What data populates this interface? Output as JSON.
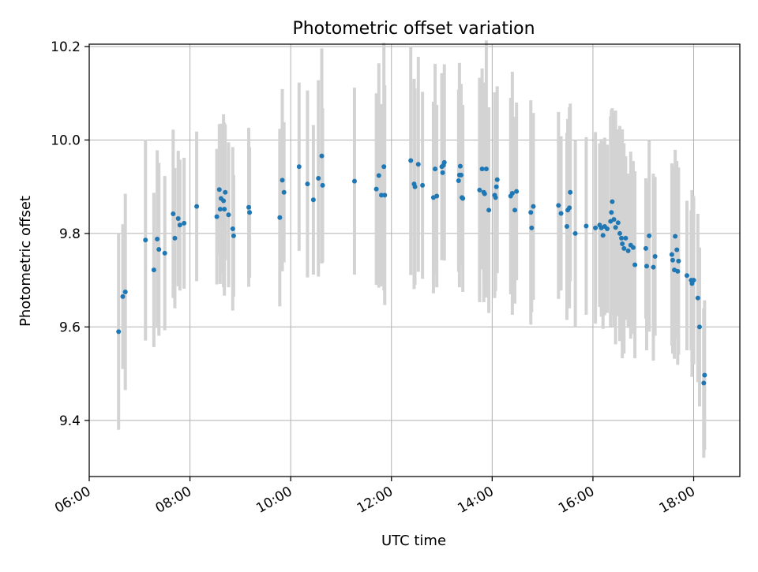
{
  "chart_data": {
    "type": "scatter",
    "title": "Photometric offset variation",
    "xlabel": "UTC time",
    "ylabel": "Photometric offset",
    "x_format": "HH:MM",
    "xlim": [
      "06:00",
      "18:55"
    ],
    "ylim": [
      9.28,
      10.205
    ],
    "x_ticks": [
      "06:00",
      "08:00",
      "10:00",
      "12:00",
      "14:00",
      "16:00",
      "18:00"
    ],
    "y_ticks": [
      9.4,
      9.6,
      9.8,
      10.0,
      10.2
    ],
    "y_tick_labels": [
      "9.4",
      "9.6",
      "9.8",
      "10.0",
      "10.2"
    ],
    "grid": true,
    "point_color": "#1f77b4",
    "errorbar_color": "#d3d3d3",
    "series": [
      {
        "x": [
          "06:35",
          "06:40",
          "06:43",
          "07:07",
          "07:17",
          "07:21",
          "07:23",
          "07:30",
          "07:40",
          "07:42",
          "07:46",
          "07:48",
          "07:53",
          "08:08",
          "08:32",
          "08:35",
          "08:36",
          "08:37",
          "08:40",
          "08:41",
          "08:42",
          "08:46",
          "08:51",
          "08:52",
          "09:10",
          "09:11",
          "09:47",
          "09:50",
          "09:52",
          "10:10",
          "10:20",
          "10:27",
          "10:33",
          "10:37",
          "10:38",
          "11:16",
          "11:42",
          "11:45",
          "11:48",
          "11:51",
          "11:52",
          "12:23",
          "12:27",
          "12:28",
          "12:32",
          "12:37",
          "12:50",
          "12:52",
          "12:54",
          "13:00",
          "13:01",
          "13:02",
          "13:03",
          "13:20",
          "13:21",
          "13:22",
          "13:23",
          "13:24",
          "13:25",
          "13:45",
          "13:48",
          "13:50",
          "13:51",
          "13:53",
          "13:56",
          "14:03",
          "14:04",
          "14:05",
          "14:06",
          "14:22",
          "14:24",
          "14:27",
          "14:29",
          "14:46",
          "14:47",
          "14:49",
          "15:19",
          "15:22",
          "15:29",
          "15:30",
          "15:32",
          "15:33",
          "15:39",
          "15:52",
          "16:03",
          "16:08",
          "16:10",
          "16:12",
          "16:14",
          "16:17",
          "16:21",
          "16:22",
          "16:23",
          "16:25",
          "16:27",
          "16:30",
          "16:32",
          "16:34",
          "16:35",
          "16:37",
          "16:39",
          "16:42",
          "16:45",
          "16:48",
          "16:50",
          "17:03",
          "17:04",
          "17:07",
          "17:12",
          "17:14",
          "17:34",
          "17:35",
          "17:37",
          "17:38",
          "17:40",
          "17:41",
          "17:42",
          "17:52",
          "17:57",
          "17:58",
          "18:00",
          "18:05",
          "18:07",
          "18:12",
          "18:13"
        ],
        "y": [
          9.59,
          9.665,
          9.675,
          9.786,
          9.722,
          9.788,
          9.766,
          9.758,
          9.842,
          9.79,
          9.832,
          9.818,
          9.822,
          9.858,
          9.836,
          9.894,
          9.852,
          9.875,
          9.87,
          9.852,
          9.888,
          9.84,
          9.81,
          9.795,
          9.856,
          9.845,
          9.834,
          9.914,
          9.888,
          9.943,
          9.906,
          9.872,
          9.918,
          9.966,
          9.903,
          9.912,
          9.895,
          9.924,
          9.882,
          9.943,
          9.882,
          9.956,
          9.906,
          9.9,
          9.948,
          9.903,
          9.877,
          9.938,
          9.88,
          9.943,
          9.93,
          9.946,
          9.952,
          9.913,
          9.925,
          9.944,
          9.925,
          9.877,
          9.875,
          9.893,
          9.938,
          9.888,
          9.885,
          9.938,
          9.85,
          9.882,
          9.877,
          9.9,
          9.915,
          9.88,
          9.886,
          9.85,
          9.89,
          9.845,
          9.812,
          9.858,
          9.86,
          9.843,
          9.815,
          9.85,
          9.855,
          9.888,
          9.8,
          9.816,
          9.812,
          9.818,
          9.812,
          9.796,
          9.815,
          9.81,
          9.826,
          9.845,
          9.868,
          9.83,
          9.813,
          9.823,
          9.8,
          9.79,
          9.778,
          9.768,
          9.79,
          9.763,
          9.775,
          9.77,
          9.733,
          9.768,
          9.73,
          9.795,
          9.728,
          9.751,
          9.755,
          9.743,
          9.722,
          9.794,
          9.765,
          9.719,
          9.741,
          9.71,
          9.7,
          9.693,
          9.7,
          9.662,
          9.6,
          9.48,
          9.497
        ],
        "yerr": [
          0.21,
          0.155,
          0.21,
          0.215,
          0.165,
          0.19,
          0.185,
          0.165,
          0.18,
          0.15,
          0.145,
          0.14,
          0.14,
          0.16,
          0.145,
          0.14,
          0.16,
          0.16,
          0.185,
          0.185,
          0.145,
          0.155,
          0.175,
          0.13,
          0.17,
          0.14,
          0.19,
          0.195,
          0.15,
          0.18,
          0.2,
          0.16,
          0.21,
          0.23,
          0.165,
          0.2,
          0.205,
          0.24,
          0.195,
          0.265,
          0.235,
          0.245,
          0.225,
          0.21,
          0.23,
          0.2,
          0.205,
          0.225,
          0.195,
          0.2,
          0.155,
          0.13,
          0.21,
          0.195,
          0.24,
          0.13,
          0.195,
          0.14,
          0.2,
          0.24,
          0.215,
          0.235,
          0.19,
          0.275,
          0.22,
          0.22,
          0.2,
          0.16,
          0.2,
          0.21,
          0.26,
          0.2,
          0.19,
          0.24,
          0.18,
          0.2,
          0.2,
          0.165,
          0.2,
          0.195,
          0.215,
          0.19,
          0.2,
          0.19,
          0.205,
          0.175,
          0.19,
          0.2,
          0.19,
          0.18,
          0.225,
          0.22,
          0.2,
          0.23,
          0.25,
          0.2,
          0.23,
          0.22,
          0.245,
          0.225,
          0.175,
          0.165,
          0.2,
          0.185,
          0.2,
          0.15,
          0.18,
          0.205,
          0.2,
          0.17,
          0.195,
          0.2,
          0.19,
          0.185,
          0.19,
          0.2,
          0.2,
          0.16,
          0.15,
          0.2,
          0.18,
          0.18,
          0.17,
          0.16,
          0.16
        ]
      }
    ]
  }
}
